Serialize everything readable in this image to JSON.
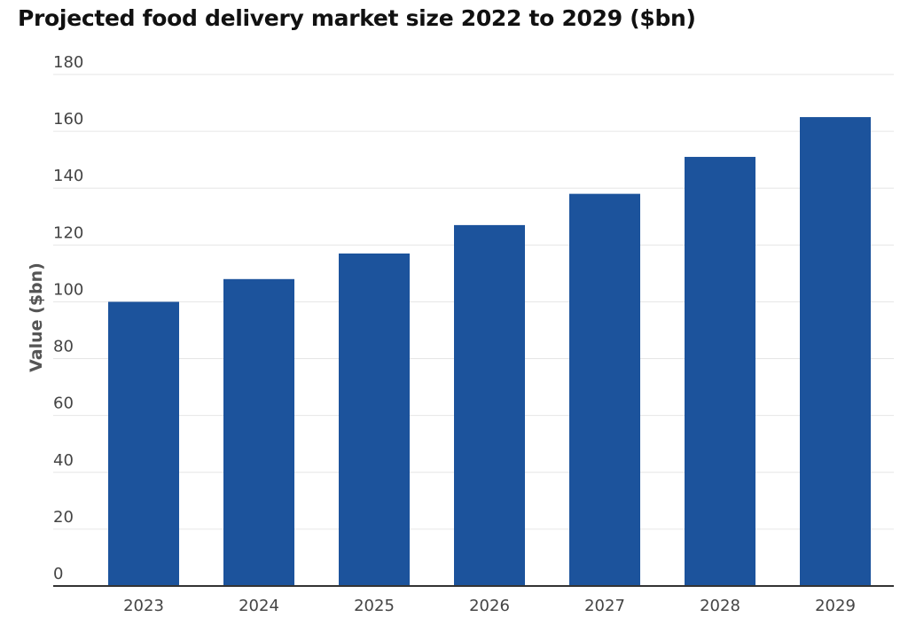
{
  "chart_data": {
    "type": "bar",
    "title": "Projected food delivery market size 2022 to 2029 ($bn)",
    "xlabel": "",
    "ylabel": "Value ($bn)",
    "categories": [
      "2023",
      "2024",
      "2025",
      "2026",
      "2027",
      "2028",
      "2029"
    ],
    "values": [
      100,
      108,
      117,
      127,
      138,
      151,
      165
    ],
    "ylim": [
      0,
      180
    ],
    "yticks": [
      0,
      20,
      40,
      60,
      80,
      100,
      120,
      140,
      160,
      180
    ],
    "grid": true,
    "legend": "none",
    "bar_color": "#1c539c"
  }
}
